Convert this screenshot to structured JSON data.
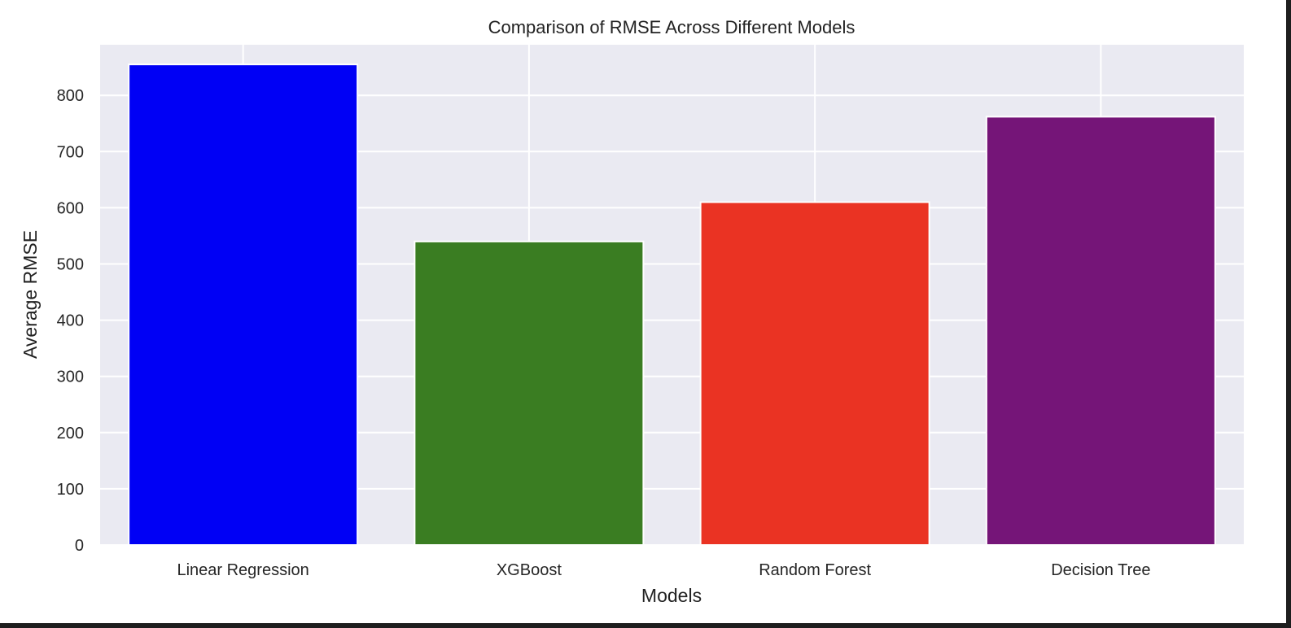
{
  "chart_data": {
    "type": "bar",
    "title": "Comparison of RMSE Across Different Models",
    "xlabel": "Models",
    "ylabel": "Average RMSE",
    "categories": [
      "Linear Regression",
      "XGBoost",
      "Random Forest",
      "Decision Tree"
    ],
    "values": [
      855,
      540,
      610,
      762
    ],
    "bar_colors": [
      "#0000f5",
      "#3a7d22",
      "#ea3323",
      "#751578"
    ],
    "ylim": [
      0,
      890
    ],
    "yticks": [
      0,
      100,
      200,
      300,
      400,
      500,
      600,
      700,
      800
    ],
    "grid": true,
    "background": "#eaeaf2",
    "grid_color": "#ffffff"
  }
}
